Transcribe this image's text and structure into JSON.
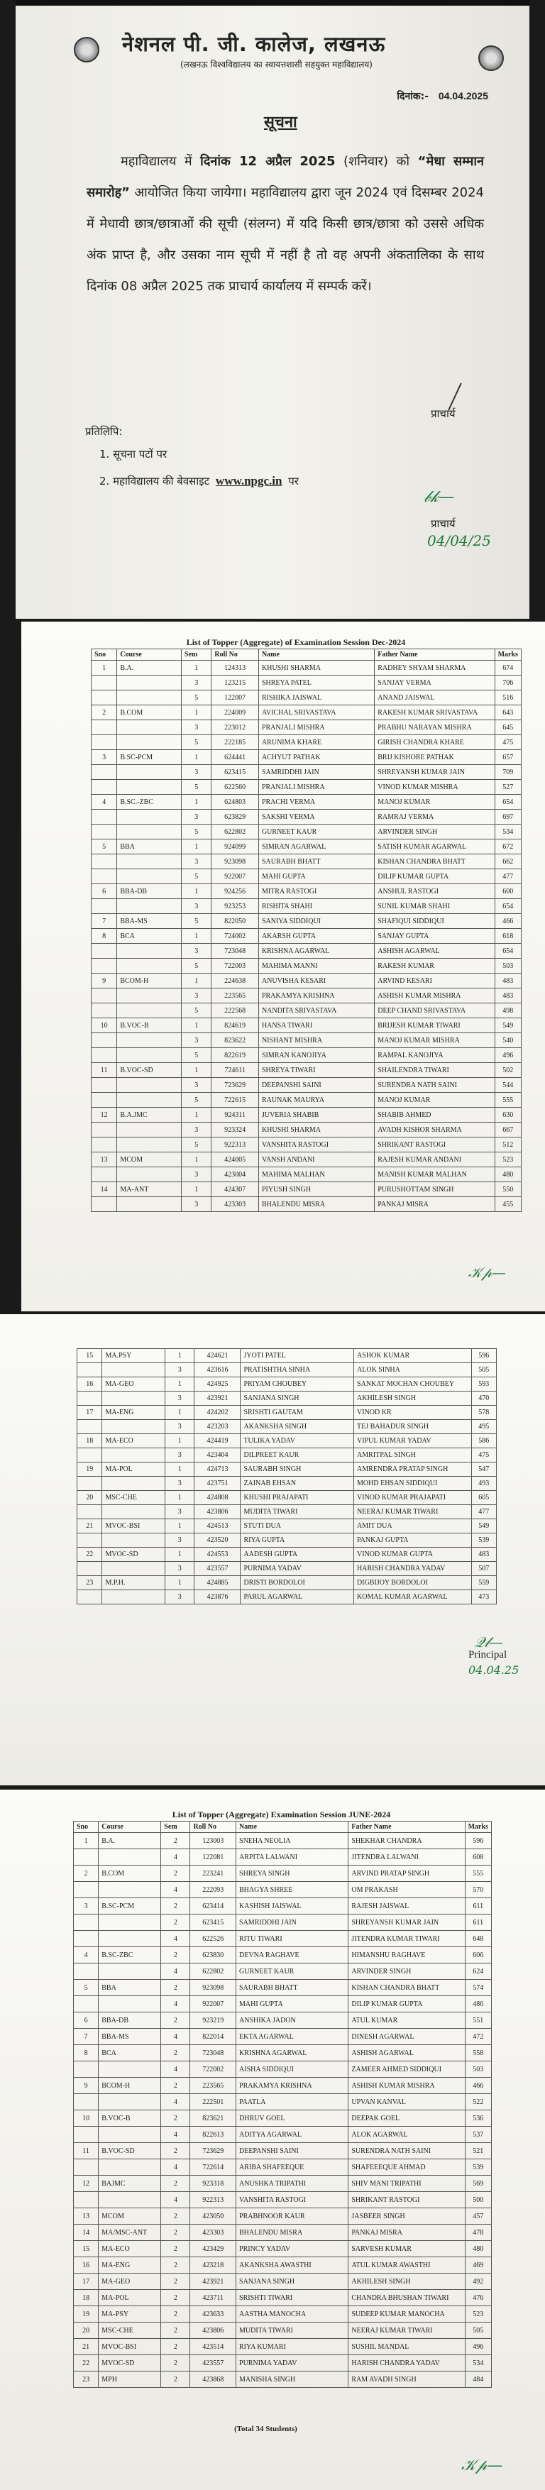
{
  "notice": {
    "college_name": "नेशनल पी. जी. कालेज, लखनऊ",
    "college_subtitle": "(लखनऊ विश्वविद्यालय का स्वायत्तशासी सहयुक्त महाविद्यालय)",
    "date_label": "दिनांक:-",
    "date_value": "04.04.2025",
    "heading": "सूचना",
    "paragraph": [
      {
        "text": "महाविद्यालय में ",
        "bold": false
      },
      {
        "text": "दिनांक 12 अप्रैल 2025",
        "bold": true
      },
      {
        "text": " (शनिवार) को ",
        "bold": false
      },
      {
        "text": "“मेधा सम्मान समारोह”",
        "bold": true
      },
      {
        "text": " आयोजित किया जायेगा। महाविद्यालय द्वारा जून 2024 एवं दिसम्बर 2024 में मेधावी छात्र/छात्राओं की सूची (संलग्न) में यदि किसी छात्र/छात्रा को उससे अधिक अंक प्राप्त है, और उसका नाम सूची में नहीं है तो वह अपनी अंकतालिका के साथ दिनांक 08 अप्रैल 2025 तक प्राचार्य कार्यालय में सम्पर्क करें।",
        "bold": false
      }
    ],
    "signatory": "प्राचार्य",
    "copy_label": "प्रतिलिपि:",
    "copy_items": [
      {
        "text": "1. सूचना पटों पर"
      },
      {
        "text": "2. महाविद्यालय की बेवसाइट",
        "link": "www.npgc.in",
        "suffix": "पर"
      }
    ],
    "signatory_2": "प्राचार्य",
    "handwritten_date": "04/04/25"
  },
  "dec2024": {
    "title": "List of Topper (Aggregate) of Examination Session Dec-2024",
    "columns": [
      "Sno",
      "Course",
      "Sem",
      "Roll No",
      "Name",
      "Father Name",
      "Marks"
    ],
    "rows": [
      [
        "1",
        "B.A.",
        "1",
        "124313",
        "KHUSHI SHARMA",
        "RADHEY SHYAM SHARMA",
        "674"
      ],
      [
        "",
        "",
        "3",
        "123215",
        "SHREYA PATEL",
        "SANJAY VERMA",
        "706"
      ],
      [
        "",
        "",
        "5",
        "122007",
        "RISHIKA JAISWAL",
        "ANAND JAISWAL",
        "516"
      ],
      [
        "2",
        "B.COM",
        "1",
        "224009",
        "AVICHAL SRIVASTAVA",
        "RAKESH KUMAR SRIVASTAVA",
        "643"
      ],
      [
        "",
        "",
        "3",
        "223012",
        "PRANJALI MISHRA",
        "PRABHU NARAYAN MISHRA",
        "645"
      ],
      [
        "",
        "",
        "5",
        "222185",
        "ARUNIMA KHARE",
        "GIRISH CHANDRA KHARE",
        "475"
      ],
      [
        "3",
        "B.SC-PCM",
        "1",
        "624441",
        "ACHYUT PATHAK",
        "BRIJ KISHORE PATHAK",
        "657"
      ],
      [
        "",
        "",
        "3",
        "623415",
        "SAMRIDDHI JAIN",
        "SHREYANSH KUMAR JAIN",
        "709"
      ],
      [
        "",
        "",
        "5",
        "622560",
        "PRANJALI MISHRA",
        "VINOD KUMAR MISHRA",
        "527"
      ],
      [
        "4",
        "B.SC.-ZBC",
        "1",
        "624803",
        "PRACHI VERMA",
        "MANOJ KUMAR",
        "654"
      ],
      [
        "",
        "",
        "3",
        "623829",
        "SAKSHI VERMA",
        "RAMRAJ VERMA",
        "697"
      ],
      [
        "",
        "",
        "5",
        "622802",
        "GURNEET KAUR",
        "ARVINDER SINGH",
        "534"
      ],
      [
        "5",
        "BBA",
        "1",
        "924099",
        "SIMRAN AGARWAL",
        "SATISH KUMAR AGARWAL",
        "672"
      ],
      [
        "",
        "",
        "3",
        "923098",
        "SAURABH BHATT",
        "KISHAN CHANDRA BHATT",
        "662"
      ],
      [
        "",
        "",
        "5",
        "922007",
        "MAHI GUPTA",
        "DILIP KUMAR GUPTA",
        "477"
      ],
      [
        "6",
        "BBA-DB",
        "1",
        "924256",
        "MITRA RASTOGI",
        "ANSHUL RASTOGI",
        "600"
      ],
      [
        "",
        "",
        "3",
        "923253",
        "RISHITA SHAHI",
        "SUNIL KUMAR SHAHI",
        "654"
      ],
      [
        "7",
        "BBA-MS",
        "5",
        "822050",
        "SANIYA SIDDIQUI",
        "SHAFIQUI SIDDIQUI",
        "466"
      ],
      [
        "8",
        "BCA",
        "1",
        "724002",
        "AKARSH GUPTA",
        "SANJAY GUPTA",
        "618"
      ],
      [
        "",
        "",
        "3",
        "723048",
        "KRISHNA AGARWAL",
        "ASHISH AGARWAL",
        "654"
      ],
      [
        "",
        "",
        "5",
        "722003",
        "MAHIMA MANNI",
        "RAKESH KUMAR",
        "503"
      ],
      [
        "9",
        "BCOM-H",
        "1",
        "224638",
        "ANUVISHA KESARI",
        "ARVIND KESARI",
        "483"
      ],
      [
        "",
        "",
        "3",
        "223565",
        "PRAKAMYA KRISHNA",
        "ASHISH KUMAR MISHRA",
        "483"
      ],
      [
        "",
        "",
        "5",
        "222568",
        "NANDITA SRIVASTAVA",
        "DEEP CHAND SRIVASTAVA",
        "498"
      ],
      [
        "10",
        "B.VOC-B",
        "1",
        "824619",
        "HANSA TIWARI",
        "BRIJESH KUMAR TIWARI",
        "549"
      ],
      [
        "",
        "",
        "3",
        "823622",
        "NISHANT MISHRA",
        "MANOJ KUMAR MISHRA",
        "540"
      ],
      [
        "",
        "",
        "5",
        "822619",
        "SIMRAN KANOJIYA",
        "RAMPAL KANOJIYA",
        "496"
      ],
      [
        "11",
        "B.VOC-SD",
        "1",
        "724611",
        "SHREYA TIWARI",
        "SHAILENDRA TIWARI",
        "502"
      ],
      [
        "",
        "",
        "3",
        "723629",
        "DEEPANSHI SAINI",
        "SURENDRA NATH SAINI",
        "544"
      ],
      [
        "",
        "",
        "5",
        "722615",
        "RAUNAK MAURYA",
        "MANOJ KUMAR",
        "555"
      ],
      [
        "12",
        "B.A.JMC",
        "1",
        "924311",
        "JUVERIA SHABIB",
        "SHABIB AHMED",
        "630"
      ],
      [
        "",
        "",
        "3",
        "923324",
        "KHUSHI SHARMA",
        "AVADH KISHOR SHARMA",
        "667"
      ],
      [
        "",
        "",
        "5",
        "922313",
        "VANSHITA RASTOGI",
        "SHRIKANT RASTOGI",
        "512"
      ],
      [
        "13",
        "MCOM",
        "1",
        "424005",
        "VANSH ANDANI",
        "RAJESH KUMAR ANDANI",
        "523"
      ],
      [
        "",
        "",
        "3",
        "423004",
        "MAHIMA MALHAN",
        "MANISH KUMAR MALHAN",
        "480"
      ],
      [
        "14",
        "MA-ANT",
        "1",
        "424307",
        "PIYUSH SINGH",
        "PURUSHOTTAM SINGH",
        "550"
      ],
      [
        "",
        "",
        "3",
        "423303",
        "BHALENDU MISRA",
        "PANKAJ MISRA",
        "455"
      ]
    ],
    "rows_continued": [
      [
        "15",
        "MA.PSY",
        "1",
        "424621",
        "JYOTI PATEL",
        "ASHOK KUMAR",
        "596"
      ],
      [
        "",
        "",
        "3",
        "423616",
        "PRATISHTHA SINHA",
        "ALOK SINHA",
        "505"
      ],
      [
        "16",
        "MA-GEO",
        "1",
        "424925",
        "PRIYAM CHOUBEY",
        "SANKAT MOCHAN CHOUBEY",
        "593"
      ],
      [
        "",
        "",
        "3",
        "423921",
        "SANJANA SINGH",
        "AKHILESH SINGH",
        "470"
      ],
      [
        "17",
        "MA-ENG",
        "1",
        "424202",
        "SRISHTI GAUTAM",
        "VINOD KR",
        "578"
      ],
      [
        "",
        "",
        "3",
        "423203",
        "AKANKSHA SINGH",
        "TEJ BAHADUR SINGH",
        "495"
      ],
      [
        "18",
        "MA-ECO",
        "1",
        "424419",
        "TULIKA YADAV",
        "VIPUL KUMAR YADAV",
        "586"
      ],
      [
        "",
        "",
        "3",
        "423404",
        "DILPREET KAUR",
        "AMRITPAL SINGH",
        "475"
      ],
      [
        "19",
        "MA-POL",
        "1",
        "424713",
        "SAURABH SINGH",
        "AMRENDRA PRATAP SINGH",
        "547"
      ],
      [
        "",
        "",
        "3",
        "423751",
        "ZAINAB EHSAN",
        "MOHD EHSAN SIDDIQUI",
        "493"
      ],
      [
        "20",
        "MSC-CHE",
        "1",
        "424808",
        "KHUSHI PRAJAPATI",
        "VINOD KUMAR PRAJAPATI",
        "605"
      ],
      [
        "",
        "",
        "3",
        "423806",
        "MUDITA TIWARI",
        "NEERAJ KUMAR TIWARI",
        "477"
      ],
      [
        "21",
        "MVOC-BSI",
        "1",
        "424513",
        "STUTI DUA",
        "AMIT DUA",
        "549"
      ],
      [
        "",
        "",
        "3",
        "423520",
        "RIYA GUPTA",
        "PANKAJ GUPTA",
        "539"
      ],
      [
        "22",
        "MVOC-SD",
        "1",
        "424553",
        "AADESH GUPTA",
        "VINOD KUMAR GUPTA",
        "483"
      ],
      [
        "",
        "",
        "3",
        "423557",
        "PURNIMA YADAV",
        "HARISH CHANDRA YADAV",
        "507"
      ],
      [
        "23",
        "M.P.H.",
        "1",
        "424885",
        "DRISTI BORDOLOI",
        "DIGBIJOY BORDOLOI",
        "559"
      ],
      [
        "",
        "",
        "3",
        "423876",
        "PARUL AGARWAL",
        "KOMAL KUMAR AGARWAL",
        "473"
      ]
    ],
    "principal_label": "Principal",
    "handwritten_date": "04.04.25"
  },
  "june2024": {
    "title": "List of Topper (Aggregate) Examination Session JUNE-2024",
    "columns": [
      "Sno",
      "Course",
      "Sem",
      "Roll No",
      "Name",
      "Father Name",
      "Marks"
    ],
    "rows": [
      [
        "1",
        "B.A.",
        "2",
        "123003",
        "SNEHA NEOLIA",
        "SHEKHAR CHANDRA",
        "596"
      ],
      [
        "",
        "",
        "4",
        "122081",
        "ARPITA LALWANI",
        "JITENDRA LALWANI",
        "608"
      ],
      [
        "2",
        "B.COM",
        "2",
        "223241",
        "SHREYA SINGH",
        "ARVIND PRATAP SINGH",
        "555"
      ],
      [
        "",
        "",
        "4",
        "222093",
        "BHAGYA SHREE",
        "OM PRAKASH",
        "570"
      ],
      [
        "3",
        "B.SC-PCM",
        "2",
        "623414",
        "KASHISH JAISWAL",
        "RAJESH JAISWAL",
        "611"
      ],
      [
        "",
        "",
        "2",
        "623415",
        "SAMRIDDHI JAIN",
        "SHREYANSH KUMAR JAIN",
        "611"
      ],
      [
        "",
        "",
        "4",
        "622526",
        "RITU TIWARI",
        "JITENDRA KUMAR TIWARI",
        "648"
      ],
      [
        "4",
        "B.SC-ZBC",
        "2",
        "623830",
        "DEVNA RAGHAVE",
        "HIMANSHU RAGHAVE",
        "606"
      ],
      [
        "",
        "",
        "4",
        "622802",
        "GURNEET KAUR",
        "ARVINDER SINGH",
        "624"
      ],
      [
        "5",
        "BBA",
        "2",
        "923098",
        "SAURABH BHATT",
        "KISHAN CHANDRA BHATT",
        "574"
      ],
      [
        "",
        "",
        "4",
        "922007",
        "MAHI GUPTA",
        "DILIP KUMAR GUPTA",
        "486"
      ],
      [
        "6",
        "BBA-DB",
        "2",
        "923219",
        "ANSHIKA JADON",
        "ATUL KUMAR",
        "551"
      ],
      [
        "7",
        "BBA-MS",
        "4",
        "822014",
        "EKTA AGARWAL",
        "DINESH AGARWAL",
        "472"
      ],
      [
        "8",
        "BCA",
        "2",
        "723048",
        "KRISHNA AGARWAL",
        "ASHISH AGARWAL",
        "558"
      ],
      [
        "",
        "",
        "4",
        "722002",
        "AISHA SIDDIQUI",
        "ZAMEER AHMED SIDDIQUI",
        "503"
      ],
      [
        "9",
        "BCOM-H",
        "2",
        "223565",
        "PRAKAMYA KRISHNA",
        "ASHISH KUMAR MISHRA",
        "466"
      ],
      [
        "",
        "",
        "4",
        "222501",
        "PAATLA",
        "UPVAN KANVAL",
        "522"
      ],
      [
        "10",
        "B.VOC-B",
        "2",
        "823621",
        "DHRUV GOEL",
        "DEEPAK GOEL",
        "536"
      ],
      [
        "",
        "",
        "4",
        "822613",
        "ADITYA AGARWAL",
        "ALOK AGARWAL",
        "537"
      ],
      [
        "11",
        "B.VOC-SD",
        "2",
        "723629",
        "DEEPANSHI SAINI",
        "SURENDRA NATH SAINI",
        "521"
      ],
      [
        "",
        "",
        "4",
        "722614",
        "ARIBA SHAFEEQUE",
        "SHAFEEEQUE AHMAD",
        "539"
      ],
      [
        "12",
        "BAJMC",
        "2",
        "923318",
        "ANUSHKA TRIPATHI",
        "SHIV MANI TRIPATHI",
        "569"
      ],
      [
        "",
        "",
        "4",
        "922313",
        "VANSHITA RASTOGI",
        "SHRIKANT RASTOGI",
        "500"
      ],
      [
        "13",
        "MCOM",
        "2",
        "423050",
        "PRABHNOOR KAUR",
        "JASBEER SINGH",
        "457"
      ],
      [
        "14",
        "MA/MSC-ANT",
        "2",
        "423303",
        "BHALENDU MISRA",
        "PANKAJ MISRA",
        "478"
      ],
      [
        "15",
        "MA-ECO",
        "2",
        "423429",
        "PRINCY YADAV",
        "SARVESH KUMAR",
        "480"
      ],
      [
        "16",
        "MA-ENG",
        "2",
        "423218",
        "AKANKSHA AWASTHI",
        "ATUL KUMAR AWASTHI",
        "469"
      ],
      [
        "17",
        "MA-GEO",
        "2",
        "423921",
        "SANJANA SINGH",
        "AKHILESH SINGH",
        "492"
      ],
      [
        "18",
        "MA-POL",
        "2",
        "423711",
        "SRISHTI TIWARI",
        "CHANDRA BHUSHAN TIWARI",
        "476"
      ],
      [
        "19",
        "MA-PSY",
        "2",
        "423633",
        "AASTHA MANOCHA",
        "SUDEEP KUMAR MANOCHA",
        "523"
      ],
      [
        "20",
        "MSC-CHE",
        "2",
        "423806",
        "MUDITA TIWARI",
        "NEERAJ KUMAR TIWARI",
        "505"
      ],
      [
        "21",
        "MVOC-BSI",
        "2",
        "423514",
        "RIYA KUMARI",
        "SUSHIL MANDAL",
        "496"
      ],
      [
        "22",
        "MVOC-SD",
        "2",
        "423557",
        "PURNIMA YADAV",
        "HARISH CHANDRA YADAV",
        "534"
      ],
      [
        "23",
        "MPH",
        "2",
        "423868",
        "MANISHA SINGH",
        "RAM AVADH SINGH",
        "484"
      ]
    ],
    "total": "(Total 34 Students)"
  }
}
